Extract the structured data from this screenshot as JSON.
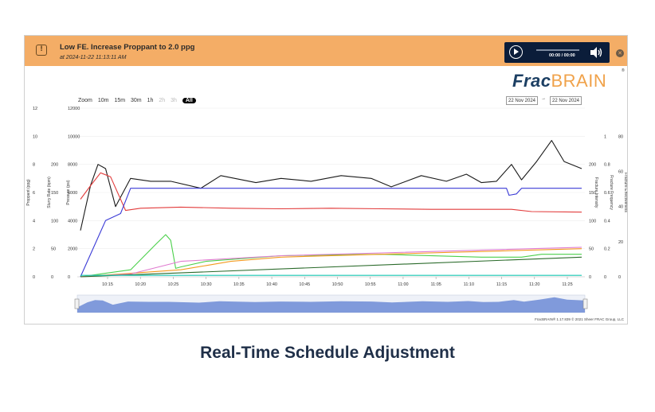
{
  "alert": {
    "title": "Low FE. Increase Proppant to 2.0 ppg",
    "time": "at 2024-11-22 11:13:11 AM",
    "icon": "alert-icon"
  },
  "player": {
    "time": "00:00 / 00:00"
  },
  "close_icon": "✕",
  "brand": {
    "part1": "Frac",
    "part2": "BRAIN",
    "reg": "®"
  },
  "zoom": {
    "label": "Zoom",
    "buttons": [
      "10m",
      "15m",
      "30m",
      "1h",
      "2h",
      "3h",
      "All"
    ],
    "active": "All"
  },
  "range": {
    "from": "22 Nov 2024",
    "to": "22 Nov 2024",
    "arrow": "→"
  },
  "footer": "FracBRAIN® 1.17.839 © 2021 Sheer FRAC Group, LLC",
  "caption": "Real-Time Schedule Adjustment",
  "colors": {
    "alert_bg": "#f4ad66",
    "red": "#e23b3b",
    "black": "#1a1a1a",
    "blue": "#3b3bd6",
    "green": "#4bd04b",
    "orange": "#f39a1f",
    "pink": "#e07ad0",
    "teal": "#18c7b4",
    "navigator": "#6c8bd6"
  },
  "chart_data": {
    "type": "line",
    "x_ticks": [
      "10:15",
      "10:20",
      "10:25",
      "10:30",
      "10:35",
      "10:40",
      "10:45",
      "10:50",
      "10:55",
      "11:00",
      "11:05",
      "11:10",
      "11:15",
      "11:20",
      "11:25"
    ],
    "left_axes": [
      {
        "label": "Proppant (ppg)",
        "ticks": [
          "0",
          "2",
          "4",
          "6",
          "8",
          "10",
          "12"
        ]
      },
      {
        "label": "Slurry Rate (bpm)",
        "ticks": [
          "0",
          "50",
          "100",
          "150",
          "200"
        ]
      },
      {
        "label": "Pressure (psi)",
        "ticks": [
          "0",
          "2000",
          "4000",
          "6000",
          "8000",
          "10000",
          "12000"
        ]
      }
    ],
    "right_axes": [
      {
        "label": "Fracture Intensity",
        "ticks": [
          "0",
          "50",
          "100",
          "150",
          "200"
        ]
      },
      {
        "label": "Fracture Frequency",
        "ticks": [
          "0",
          "0.2",
          "0.4",
          "0.6",
          "0.8",
          "1"
        ]
      },
      {
        "label": "Fracture Effectiveness",
        "ticks": [
          "0",
          "20",
          "40",
          "60",
          "80"
        ]
      }
    ],
    "series": [
      {
        "name": "Pressure",
        "color": "#1a1a1a",
        "x": [
          0,
          2,
          3.5,
          5,
          7,
          10,
          14,
          18,
          24,
          28,
          35,
          40,
          46,
          52,
          58,
          62,
          68,
          73,
          77,
          80,
          83,
          86,
          88,
          91,
          94,
          96.5,
          100
        ],
        "y": [
          3300,
          6500,
          8000,
          7700,
          5000,
          7000,
          6800,
          6800,
          6300,
          7200,
          6700,
          7000,
          6800,
          7200,
          7000,
          6400,
          7200,
          6800,
          7300,
          6700,
          6800,
          8000,
          6900,
          8200,
          9700,
          8200,
          7700
        ]
      },
      {
        "name": "Slurry Rate",
        "color": "#e23b3b",
        "x": [
          0,
          2,
          4,
          6,
          9,
          12,
          20,
          30,
          40,
          50,
          60,
          70,
          80,
          86,
          90,
          100
        ],
        "y": [
          138,
          162,
          185,
          178,
          118,
          122,
          124,
          122,
          121,
          122,
          121,
          120,
          120,
          120,
          116,
          115
        ]
      },
      {
        "name": "Proppant Rate",
        "color": "#3b3bd6",
        "x": [
          0,
          5,
          8,
          10,
          20,
          40,
          60,
          80,
          85,
          85.5,
          87,
          88,
          90,
          100
        ],
        "y": [
          0,
          4,
          4.5,
          6.3,
          6.3,
          6.3,
          6.3,
          6.3,
          6.3,
          5.8,
          5.9,
          6.3,
          6.3,
          6.3
        ]
      },
      {
        "name": "Green",
        "color": "#4bd04b",
        "x": [
          0,
          10,
          15,
          17,
          18,
          19,
          20,
          25,
          40,
          60,
          80,
          88,
          92,
          100
        ],
        "y": [
          0,
          500,
          2300,
          3000,
          2600,
          600,
          700,
          1100,
          1500,
          1600,
          1400,
          1400,
          1600,
          1600
        ]
      },
      {
        "name": "Orange",
        "color": "#f39a1f",
        "x": [
          0,
          20,
          25,
          30,
          40,
          60,
          80,
          100
        ],
        "y": [
          0,
          500,
          800,
          1100,
          1400,
          1600,
          1800,
          2000
        ]
      },
      {
        "name": "Pink",
        "color": "#e07ad0",
        "x": [
          0,
          10,
          20,
          40,
          60,
          80,
          100
        ],
        "y": [
          0,
          200,
          1100,
          1500,
          1700,
          1900,
          2100
        ]
      },
      {
        "name": "Dark green",
        "color": "#2a6a2a",
        "x": [
          0,
          100
        ],
        "y": [
          0,
          1400
        ]
      },
      {
        "name": "Teal",
        "color": "#18c7b4",
        "x": [
          0,
          100
        ],
        "y": [
          100,
          100
        ]
      }
    ]
  }
}
